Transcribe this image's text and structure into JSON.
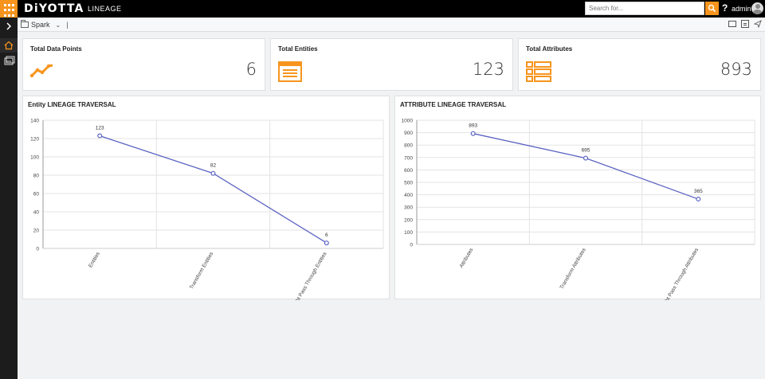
{
  "app": {
    "logo": "DiYOTTA",
    "module": "LINEAGE"
  },
  "search": {
    "placeholder": "Search for..."
  },
  "help_label": "?",
  "user": {
    "name": "admin"
  },
  "breadcrumb": {
    "item": "Spark",
    "caret": "⌄",
    "cursor": "|"
  },
  "stats": [
    {
      "title": "Total Data Points",
      "value": "6",
      "icon": "trend-line-icon"
    },
    {
      "title": "Total Entities",
      "value": "123",
      "icon": "entity-list-icon"
    },
    {
      "title": "Total Attributes",
      "value": "893",
      "icon": "attribute-list-icon"
    }
  ],
  "colors": {
    "accent": "#f7941d",
    "line": "#5b63c2",
    "sidebar": "#1c1c1c"
  },
  "chart_data": [
    {
      "type": "line",
      "title": "Entity LINEAGE TRAVERSAL",
      "categories": [
        "Entities",
        "Transform Entities",
        "Straight Pass Through Entities"
      ],
      "values": [
        123,
        82,
        6
      ],
      "ylim": [
        0,
        140
      ],
      "yticks": [
        0,
        20,
        40,
        60,
        80,
        100,
        120,
        140
      ],
      "grid": true
    },
    {
      "type": "line",
      "title": "ATTRIBUTE LINEAGE TRAVERSAL",
      "categories": [
        "Attributes",
        "Transform Attributes",
        "Straight Pass Through Attributes"
      ],
      "values": [
        893,
        695,
        365
      ],
      "ylim": [
        0,
        1000
      ],
      "yticks": [
        0,
        100,
        200,
        300,
        400,
        500,
        600,
        700,
        800,
        900,
        1000
      ],
      "grid": true
    }
  ]
}
